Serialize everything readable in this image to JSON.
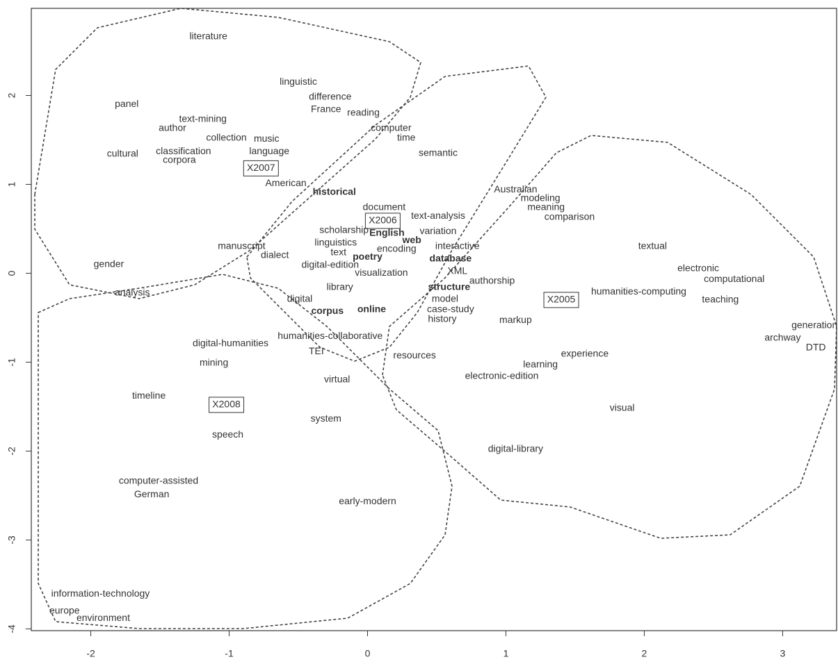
{
  "chart_data": {
    "type": "scatter",
    "xlim": [
      -2.43,
      3.39
    ],
    "ylim": [
      -4.02,
      2.98
    ],
    "xticks": [
      -2,
      -1,
      0,
      1,
      2,
      3
    ],
    "yticks": [
      -4,
      -3,
      -2,
      -1,
      0,
      1,
      2
    ],
    "points": [
      {
        "label": "literature",
        "x": -1.15,
        "y": 2.66
      },
      {
        "label": "linguistic",
        "x": -0.5,
        "y": 2.15
      },
      {
        "label": "difference",
        "x": -0.27,
        "y": 1.98
      },
      {
        "label": "France",
        "x": -0.3,
        "y": 1.84
      },
      {
        "label": "reading",
        "x": -0.03,
        "y": 1.8
      },
      {
        "label": "panel",
        "x": -1.74,
        "y": 1.9
      },
      {
        "label": "text-mining",
        "x": -1.19,
        "y": 1.73
      },
      {
        "label": "author",
        "x": -1.41,
        "y": 1.63
      },
      {
        "label": "collection",
        "x": -1.02,
        "y": 1.52
      },
      {
        "label": "music",
        "x": -0.73,
        "y": 1.51
      },
      {
        "label": "computer",
        "x": 0.17,
        "y": 1.63
      },
      {
        "label": "time",
        "x": 0.28,
        "y": 1.52
      },
      {
        "label": "cultural",
        "x": -1.77,
        "y": 1.34
      },
      {
        "label": "classification",
        "x": -1.33,
        "y": 1.37
      },
      {
        "label": "corpora",
        "x": -1.36,
        "y": 1.27
      },
      {
        "label": "language",
        "x": -0.71,
        "y": 1.37
      },
      {
        "label": "semantic",
        "x": 0.51,
        "y": 1.35
      },
      {
        "label": "American",
        "x": -0.59,
        "y": 1.01
      },
      {
        "label": "historical",
        "x": -0.24,
        "y": 0.91,
        "bold": true
      },
      {
        "label": "Australian",
        "x": 1.07,
        "y": 0.94
      },
      {
        "label": "modeling",
        "x": 1.25,
        "y": 0.84
      },
      {
        "label": "meaning",
        "x": 1.29,
        "y": 0.74
      },
      {
        "label": "comparison",
        "x": 1.46,
        "y": 0.63
      },
      {
        "label": "document",
        "x": 0.12,
        "y": 0.74
      },
      {
        "label": "text-analysis",
        "x": 0.51,
        "y": 0.64
      },
      {
        "label": "scholarship",
        "x": -0.17,
        "y": 0.48
      },
      {
        "label": "English",
        "x": 0.14,
        "y": 0.45,
        "bold": true
      },
      {
        "label": "variation",
        "x": 0.51,
        "y": 0.47
      },
      {
        "label": "web",
        "x": 0.32,
        "y": 0.37,
        "bold": true
      },
      {
        "label": "linguistics",
        "x": -0.23,
        "y": 0.34
      },
      {
        "label": "manuscript",
        "x": -0.91,
        "y": 0.3
      },
      {
        "label": "interactive",
        "x": 0.65,
        "y": 0.3
      },
      {
        "label": "text",
        "x": -0.21,
        "y": 0.23
      },
      {
        "label": "poetry",
        "x": 0.0,
        "y": 0.18,
        "bold": true
      },
      {
        "label": "encoding",
        "x": 0.21,
        "y": 0.27
      },
      {
        "label": "dialect",
        "x": -0.67,
        "y": 0.2
      },
      {
        "label": "database",
        "x": 0.6,
        "y": 0.16,
        "bold": true
      },
      {
        "label": "textual",
        "x": 2.06,
        "y": 0.3
      },
      {
        "label": "gender",
        "x": -1.87,
        "y": 0.1
      },
      {
        "label": "digital-edition",
        "x": -0.27,
        "y": 0.09
      },
      {
        "label": "visualization",
        "x": 0.1,
        "y": 0.0
      },
      {
        "label": "XML",
        "x": 0.65,
        "y": 0.02
      },
      {
        "label": "electronic",
        "x": 2.39,
        "y": 0.05
      },
      {
        "label": "computational",
        "x": 2.65,
        "y": -0.07
      },
      {
        "label": "authorship",
        "x": 0.9,
        "y": -0.09
      },
      {
        "label": "humanities-computing",
        "x": 1.96,
        "y": -0.21
      },
      {
        "label": "library",
        "x": -0.2,
        "y": -0.16
      },
      {
        "label": "structure",
        "x": 0.59,
        "y": -0.16,
        "bold": true
      },
      {
        "label": "analysis",
        "x": -1.7,
        "y": -0.22
      },
      {
        "label": "teaching",
        "x": 2.55,
        "y": -0.3
      },
      {
        "label": "digital",
        "x": -0.49,
        "y": -0.29
      },
      {
        "label": "model",
        "x": 0.56,
        "y": -0.29
      },
      {
        "label": "corpus",
        "x": -0.29,
        "y": -0.43,
        "bold": true
      },
      {
        "label": "online",
        "x": 0.03,
        "y": -0.41,
        "bold": true
      },
      {
        "label": "case-study",
        "x": 0.6,
        "y": -0.41
      },
      {
        "label": "history",
        "x": 0.54,
        "y": -0.52
      },
      {
        "label": "markup",
        "x": 1.07,
        "y": -0.53
      },
      {
        "label": "generation",
        "x": 3.23,
        "y": -0.59
      },
      {
        "label": "archway",
        "x": 3.0,
        "y": -0.73
      },
      {
        "label": "DTD",
        "x": 3.24,
        "y": -0.84
      },
      {
        "label": "digital-humanities",
        "x": -0.99,
        "y": -0.79
      },
      {
        "label": "humanities-collaborative",
        "x": -0.27,
        "y": -0.71
      },
      {
        "label": "TEI",
        "x": -0.37,
        "y": -0.88
      },
      {
        "label": "resources",
        "x": 0.34,
        "y": -0.93
      },
      {
        "label": "experience",
        "x": 1.57,
        "y": -0.91
      },
      {
        "label": "mining",
        "x": -1.11,
        "y": -1.01
      },
      {
        "label": "learning",
        "x": 1.25,
        "y": -1.03
      },
      {
        "label": "electronic-edition",
        "x": 0.97,
        "y": -1.16
      },
      {
        "label": "virtual",
        "x": -0.22,
        "y": -1.2
      },
      {
        "label": "timeline",
        "x": -1.58,
        "y": -1.38
      },
      {
        "label": "visual",
        "x": 1.84,
        "y": -1.52
      },
      {
        "label": "system",
        "x": -0.3,
        "y": -1.64
      },
      {
        "label": "speech",
        "x": -1.01,
        "y": -1.82
      },
      {
        "label": "digital-library",
        "x": 1.07,
        "y": -1.98
      },
      {
        "label": "computer-assisted",
        "x": -1.51,
        "y": -2.34
      },
      {
        "label": "German",
        "x": -1.56,
        "y": -2.49
      },
      {
        "label": "early-modern",
        "x": 0.0,
        "y": -2.57
      },
      {
        "label": "information-technology",
        "x": -1.93,
        "y": -3.61
      },
      {
        "label": "europe",
        "x": -2.19,
        "y": -3.8
      },
      {
        "label": "environment",
        "x": -1.91,
        "y": -3.88
      }
    ],
    "years": [
      {
        "label": "X2007",
        "x": -0.77,
        "y": 1.18
      },
      {
        "label": "X2006",
        "x": 0.11,
        "y": 0.59
      },
      {
        "label": "X2005",
        "x": 1.4,
        "y": -0.3
      },
      {
        "label": "X2008",
        "x": -1.02,
        "y": -1.48
      }
    ]
  }
}
